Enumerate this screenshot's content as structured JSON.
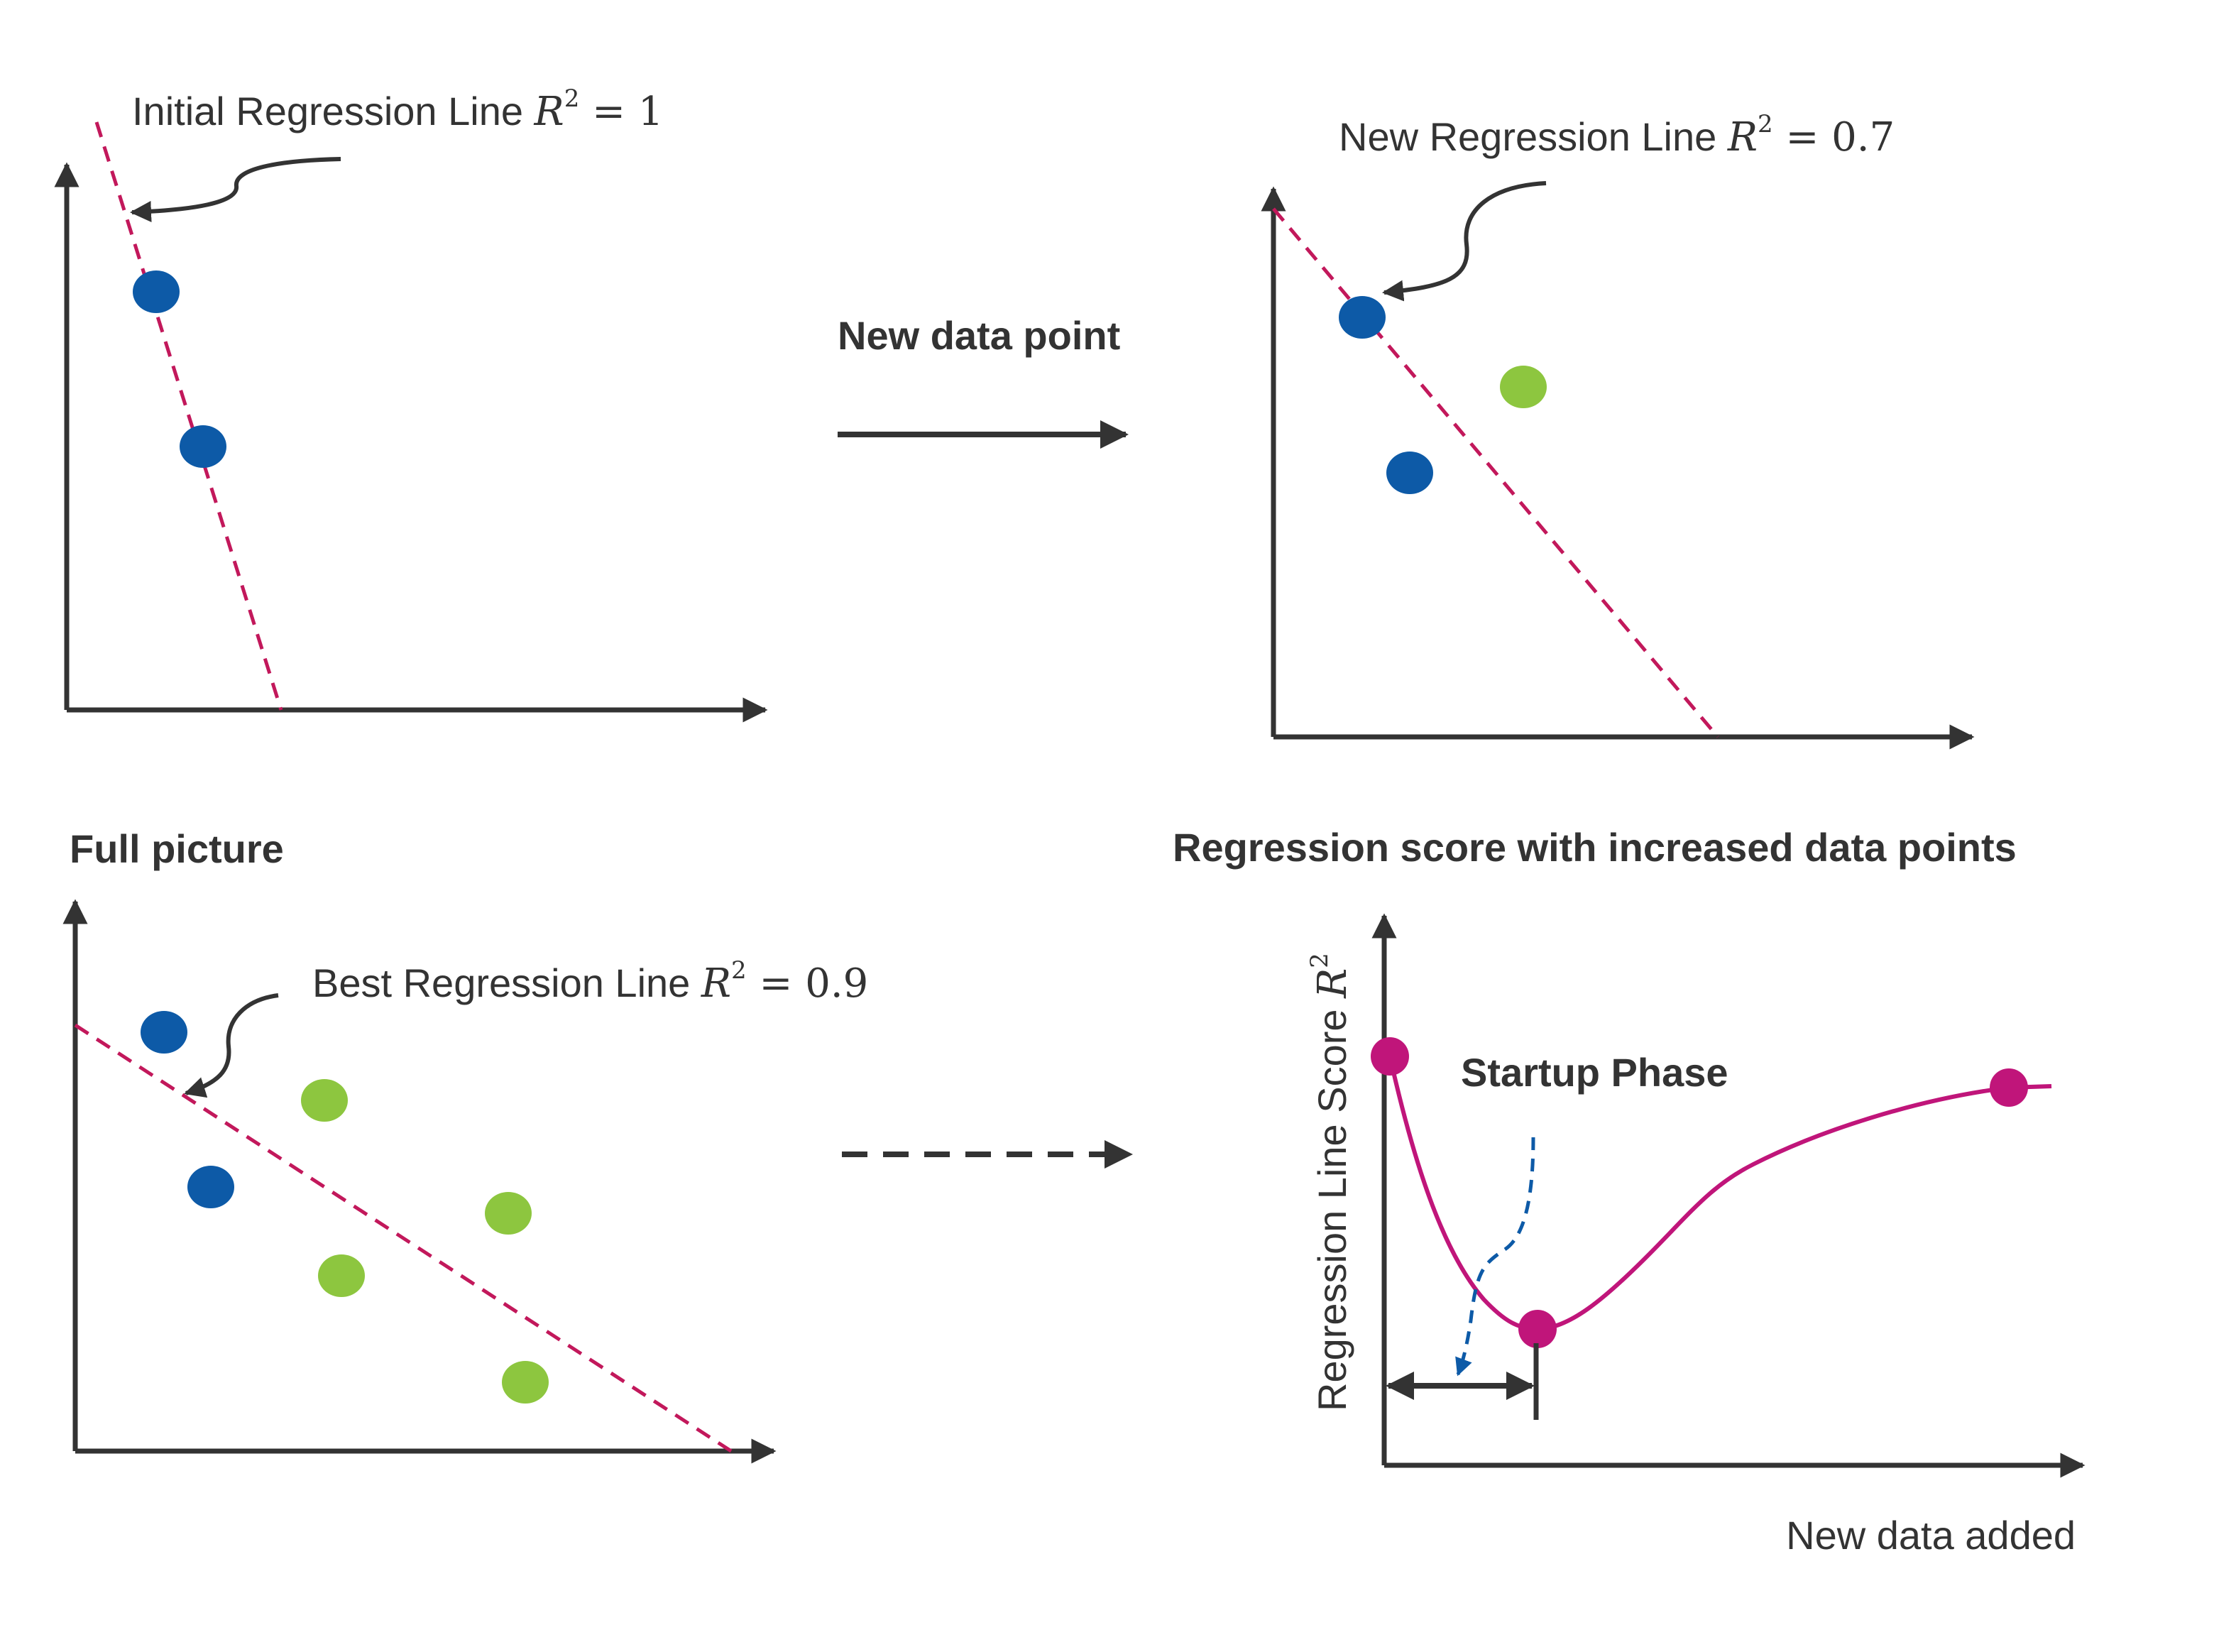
{
  "colors": {
    "axis": "#333333",
    "regression_line": "#c2185b",
    "point_original": "#0d5aa7",
    "point_new": "#8dc63f",
    "score_curve": "#c0157a",
    "startup_arrow": "#0d5aa7"
  },
  "panels": {
    "initial": {
      "label_text": "Initial Regression Line ",
      "r_symbol": "R",
      "r_exp": "2",
      "r_value": " = 1"
    },
    "new": {
      "label_text": "New Regression Line ",
      "r_symbol": "R",
      "r_exp": "2",
      "r_value": " = 0.7"
    },
    "full": {
      "heading": "Full picture",
      "label_text": "Best Regression Line ",
      "r_symbol": "R",
      "r_exp": "2",
      "r_value": " = 0.9"
    },
    "score": {
      "heading": "Regression score with increased data points",
      "y_label_text": "Regression Line Score ",
      "y_label_symbol": "R",
      "y_label_exp": "2",
      "x_label": "New data added",
      "phase_label": "Startup Phase"
    }
  },
  "transitions": {
    "new_point_label": "New data point"
  },
  "icons": {
    "arrow_solid": "arrow-right-icon",
    "arrow_dashed": "arrow-right-dashed-icon",
    "curved_pointer": "curved-arrow-icon"
  }
}
